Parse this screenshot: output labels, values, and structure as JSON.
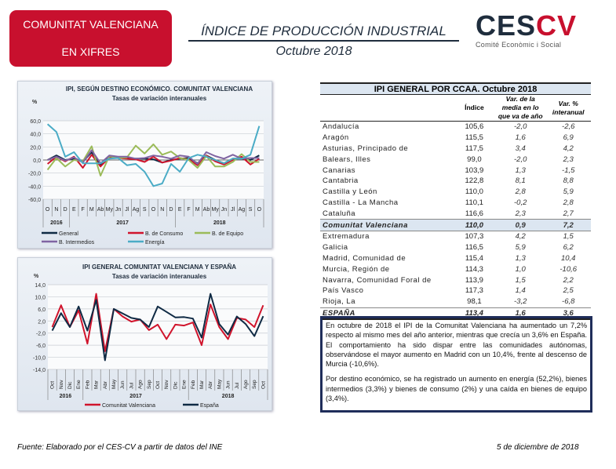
{
  "header": {
    "badge_line1": "COMUNITAT VALENCIANA",
    "badge_line2": "EN XIFRES",
    "title": "ÍNDICE DE PRODUCCIÓN INDUSTRIAL",
    "subtitle": "Octubre 2018",
    "logo_text": "CESCV",
    "logo_tagline": "Comité Econòmic i Social"
  },
  "colors": {
    "red": "#c8102e",
    "navy": "#1f2d5a"
  },
  "table": {
    "title": "IPI GENERAL POR CCAA. Octubre 2018",
    "columns": [
      "Índice",
      "Var. de la media en lo que va de año",
      "Var. % interanual"
    ],
    "rows": [
      {
        "name": "Andalucía",
        "indice": "105,6",
        "var_media": "-2,0",
        "var_inter": "-2,6"
      },
      {
        "name": "Aragón",
        "indice": "115,5",
        "var_media": "1,6",
        "var_inter": "6,9"
      },
      {
        "name": "Asturias, Principado de",
        "indice": "117,5",
        "var_media": "3,4",
        "var_inter": "4,2"
      },
      {
        "name": "Balears, Illes",
        "indice": "99,0",
        "var_media": "-2,0",
        "var_inter": "2,3"
      },
      {
        "name": "Canarias",
        "indice": "103,9",
        "var_media": "1,3",
        "var_inter": "-1,5"
      },
      {
        "name": "Cantabria",
        "indice": "122,8",
        "var_media": "8,1",
        "var_inter": "8,8"
      },
      {
        "name": "Castilla y León",
        "indice": "110,0",
        "var_media": "2,8",
        "var_inter": "5,9"
      },
      {
        "name": "Castilla - La Mancha",
        "indice": "110,1",
        "var_media": "-0,2",
        "var_inter": "2,8"
      },
      {
        "name": "Cataluña",
        "indice": "116,6",
        "var_media": "2,3",
        "var_inter": "2,7"
      },
      {
        "name": "Comunitat Valenciana",
        "indice": "110,0",
        "var_media": "0,9",
        "var_inter": "7,2"
      },
      {
        "name": "Extremadura",
        "indice": "107,3",
        "var_media": "4,2",
        "var_inter": "1,5"
      },
      {
        "name": "Galicia",
        "indice": "116,5",
        "var_media": "5,9",
        "var_inter": "6,2"
      },
      {
        "name": "Madrid, Comunidad de",
        "indice": "115,4",
        "var_media": "1,3",
        "var_inter": "10,4"
      },
      {
        "name": "Murcia, Región de",
        "indice": "114,3",
        "var_media": "1,0",
        "var_inter": "-10,6"
      },
      {
        "name": "Navarra, Comunidad Foral de",
        "indice": "113,9",
        "var_media": "1,5",
        "var_inter": "2,2"
      },
      {
        "name": "País Vasco",
        "indice": "117,3",
        "var_media": "1,4",
        "var_inter": "2,5"
      },
      {
        "name": "Rioja, La",
        "indice": "98,1",
        "var_media": "-3,2",
        "var_inter": "-6,8"
      },
      {
        "name": "ESPAÑA",
        "indice": "113,4",
        "var_media": "1,6",
        "var_inter": "3,6"
      }
    ]
  },
  "summary": {
    "p1": "En octubre de 2018 el IPI de la Comunitat Valenciana ha aumentado un 7,2% respecto al mismo mes del año anterior, mientras que crecía un 3,6% en España. El comportamiento ha sido dispar entre las comunidades autónomas, observándose el mayor aumento en Madrid con un 10,4%, frente al descenso de Murcia (-10,6%).",
    "p2": "Por destino económico, se ha registrado un aumento en energía (52,2%), bienes intermedios (3,3%) y bienes de consumo (2%) y una caída en bienes de equipo (3,4%)."
  },
  "footer": {
    "source": "Fuente: Elaborado por el CES-CV a partir de datos del INE",
    "date": "5 de diciembre de 2018"
  },
  "chart_data": [
    {
      "type": "line",
      "title": "IPI, SEGÚN DESTINO ECONÓMICO. COMUNITAT VALENCIANA",
      "subtitle": "Tasas de variación interanuales",
      "ylabel": "%",
      "ylim": [
        -60,
        60
      ],
      "yticks": [
        "60,0",
        "40,0",
        "20,0",
        "0,0",
        "-20,0",
        "-40,0",
        "-60,0"
      ],
      "ytick_values": [
        60,
        40,
        20,
        0,
        -20,
        -40,
        -60
      ],
      "categories": [
        "O",
        "N",
        "D",
        "E",
        "F",
        "M",
        "Ab",
        "My",
        "Jn",
        "Jl",
        "Ag",
        "S",
        "O",
        "N",
        "D",
        "E",
        "F",
        "M",
        "Ab",
        "My",
        "Jn",
        "Jl",
        "Ag",
        "S",
        "O"
      ],
      "years": [
        {
          "label": "2016",
          "span": 3
        },
        {
          "label": "2017",
          "span": 12
        },
        {
          "label": "2018",
          "span": 10
        }
      ],
      "legend": "bottom",
      "series": [
        {
          "name": "General",
          "color": "#0f2a44",
          "values": [
            0,
            7,
            0,
            2,
            -3,
            12,
            -8,
            5,
            4,
            3,
            2,
            2,
            1,
            -4,
            0,
            2,
            3,
            -5,
            7,
            0,
            -5,
            2,
            2,
            0,
            7
          ]
        },
        {
          "name": "B. de Consumo",
          "color": "#d0142c",
          "values": [
            -6,
            5,
            -2,
            5,
            -12,
            8,
            -10,
            4,
            3,
            2,
            1,
            -3,
            5,
            -4,
            -1,
            3,
            1,
            -8,
            7,
            -2,
            -7,
            0,
            5,
            -7,
            2
          ]
        },
        {
          "name": "B. de Equipo",
          "color": "#9bbb59",
          "values": [
            -15,
            3,
            -10,
            0,
            -2,
            21,
            -24,
            6,
            3,
            4,
            22,
            10,
            24,
            8,
            13,
            3,
            0,
            -12,
            6,
            -10,
            -10,
            -3,
            9,
            -3,
            -3
          ]
        },
        {
          "name": "B. Intermedios",
          "color": "#8064a2",
          "values": [
            0,
            5,
            -1,
            4,
            -4,
            15,
            -5,
            7,
            5,
            5,
            2,
            3,
            7,
            5,
            2,
            7,
            5,
            -6,
            12,
            6,
            2,
            8,
            2,
            3,
            3
          ]
        },
        {
          "name": "Energía",
          "color": "#4bacc6",
          "values": [
            55,
            43,
            5,
            12,
            -5,
            -5,
            -5,
            2,
            3,
            -8,
            -6,
            -18,
            -40,
            -36,
            -6,
            -18,
            3,
            8,
            5,
            0,
            -5,
            2,
            2,
            8,
            52
          ]
        }
      ]
    },
    {
      "type": "line",
      "title": "IPI GENERAL COMUNITAT VALENCIANA Y ESPAÑA",
      "subtitle": "Tasas de variación interanuales",
      "ylabel": "%",
      "ylim": [
        -14,
        14
      ],
      "yticks": [
        "14,0",
        "10,0",
        "6,0",
        "2,0",
        "-2,0",
        "-6,0",
        "-10,0",
        "-14,0"
      ],
      "ytick_values": [
        14,
        10,
        6,
        2,
        -2,
        -6,
        -10,
        -14
      ],
      "categories": [
        "Oct",
        "Nov",
        "Dic",
        "Ene",
        "Feb",
        "Mar",
        "Abr",
        "May",
        "Jun",
        "Jul",
        "Ago",
        "Sep",
        "Oct",
        "Nov",
        "Dic",
        "Ene",
        "Feb",
        "Mar",
        "Abr",
        "May",
        "Jun",
        "Jul",
        "Ago",
        "Sep",
        "Oct"
      ],
      "years": [
        {
          "label": "2016",
          "span": 4
        },
        {
          "label": "2017",
          "span": 12
        },
        {
          "label": "2018",
          "span": 9
        }
      ],
      "legend": "bottom",
      "series": [
        {
          "name": "Comunitat Valenciana",
          "color": "#d0142c",
          "values": [
            0,
            7.2,
            0,
            5.5,
            -5.5,
            11,
            -8,
            6,
            3.5,
            1.8,
            2.5,
            -1,
            0.8,
            -4,
            0.8,
            0.5,
            1.5,
            -6,
            7.5,
            0,
            -4,
            3,
            2.5,
            0,
            7.2
          ]
        },
        {
          "name": "España",
          "color": "#0f2a44",
          "values": [
            -1.2,
            4.6,
            0,
            6.8,
            -1.2,
            9,
            -11,
            6,
            4.5,
            3,
            2.5,
            0,
            6.8,
            5,
            3.2,
            3.3,
            2.8,
            -3.5,
            11,
            1,
            -2.5,
            3.5,
            1,
            -3,
            3.6
          ]
        }
      ]
    }
  ]
}
